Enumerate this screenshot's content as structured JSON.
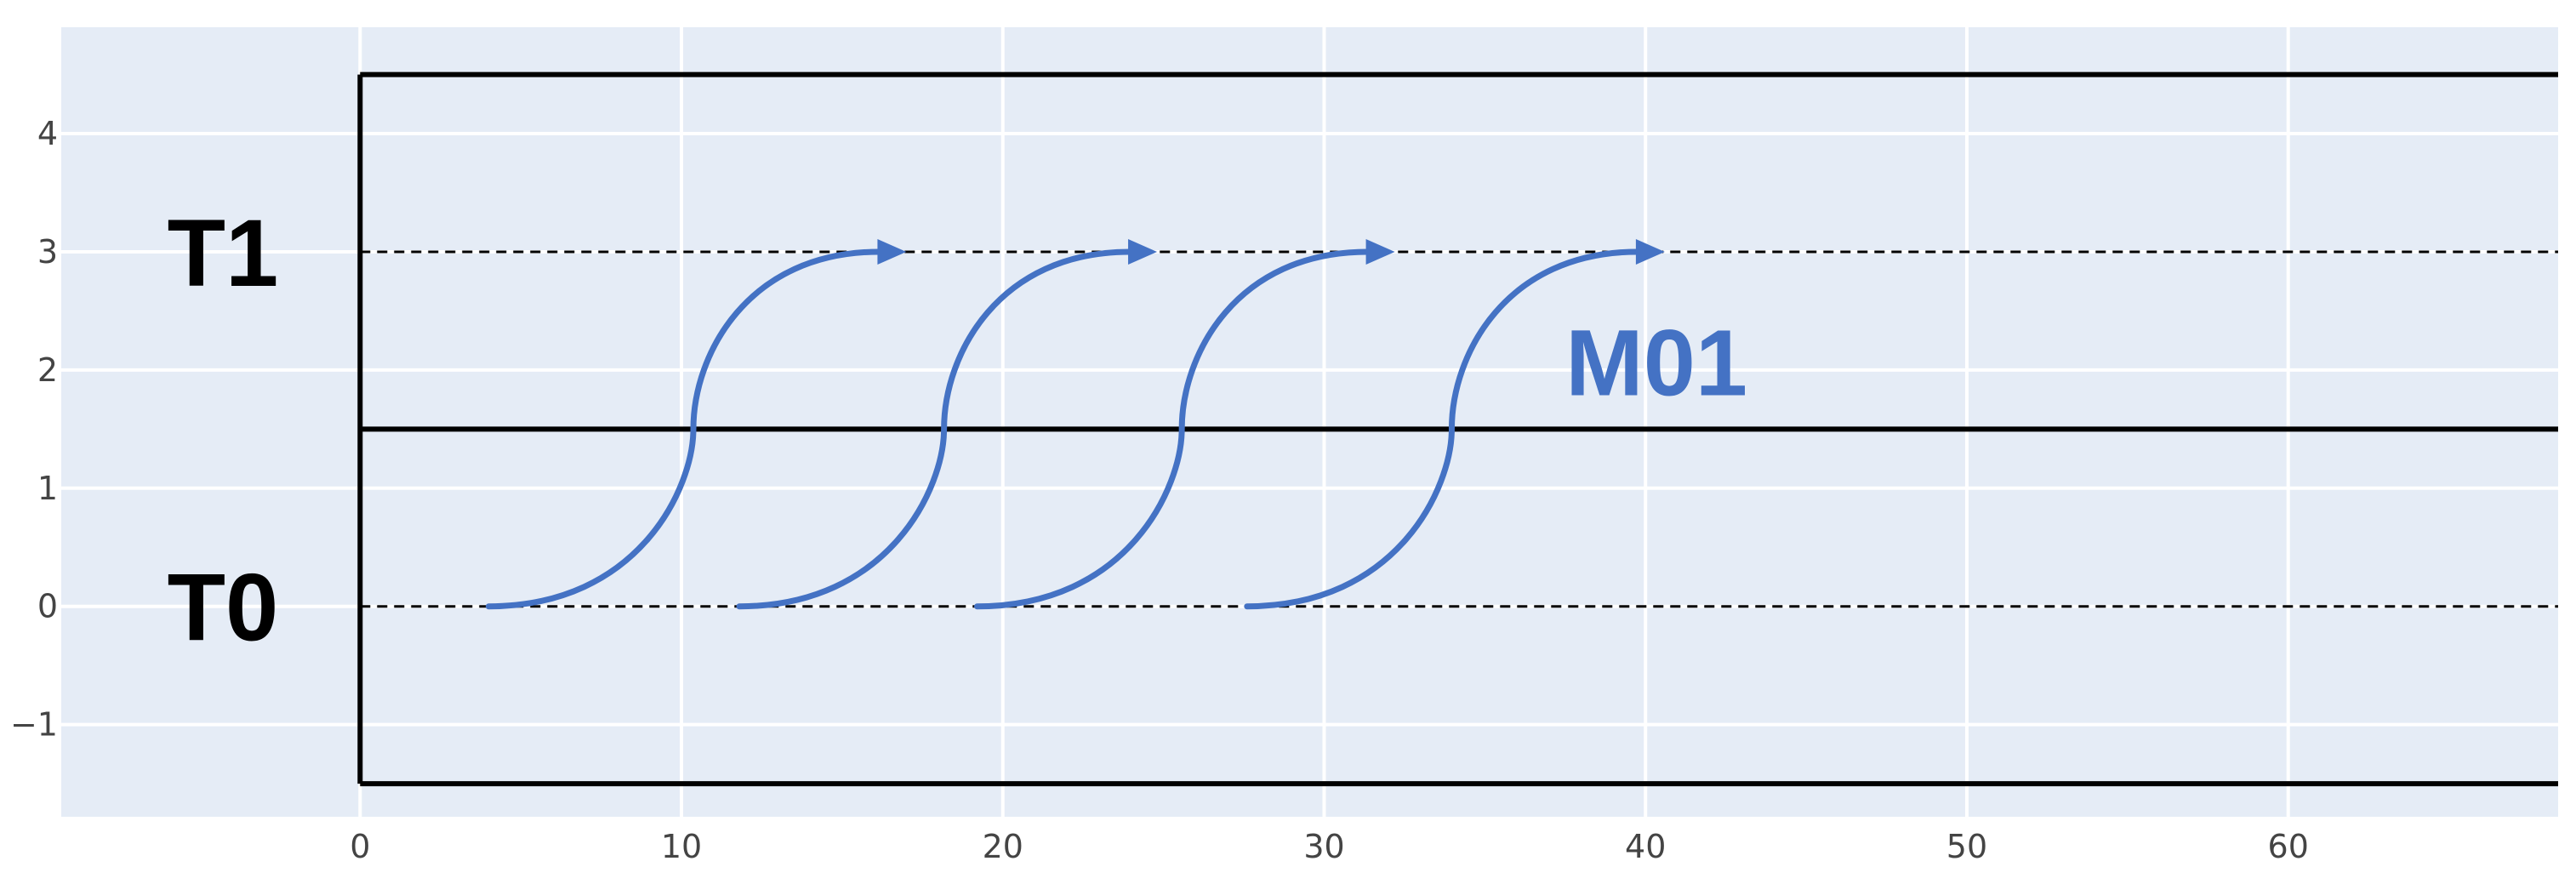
{
  "chart_data": {
    "type": "line",
    "x": {
      "range": [
        -9.3,
        68.4
      ],
      "ticks": [
        0,
        10,
        20,
        30,
        40,
        50,
        60
      ],
      "tick_labels": [
        "0",
        "10",
        "20",
        "30",
        "40",
        "50",
        "60"
      ]
    },
    "y": {
      "range": [
        -1.78,
        4.9
      ],
      "ticks": [
        -1,
        0,
        1,
        2,
        3,
        4
      ],
      "tick_labels": [
        "−1",
        "0",
        "1",
        "2",
        "3",
        "4"
      ]
    },
    "grid": true,
    "colors": {
      "plot_bg": "#e5ecf6",
      "grid": "#ffffff",
      "tick_text": "#444444",
      "line": "#000000",
      "arrow": "#4472c4"
    },
    "tracks": [
      {
        "label": "T1",
        "y": 3
      },
      {
        "label": "T0",
        "y": 0
      }
    ],
    "boundaries": [
      4.5,
      1.5,
      -1.5
    ],
    "messages": [
      {
        "label": "",
        "from": {
          "x": 4,
          "y": 0
        },
        "to": {
          "x": 17,
          "y": 3
        }
      },
      {
        "label": "",
        "from": {
          "x": 11.8,
          "y": 0
        },
        "to": {
          "x": 24.8,
          "y": 3
        }
      },
      {
        "label": "",
        "from": {
          "x": 19.2,
          "y": 0
        },
        "to": {
          "x": 32.2,
          "y": 3
        }
      },
      {
        "label": "M01",
        "from": {
          "x": 27.6,
          "y": 0
        },
        "to": {
          "x": 40.6,
          "y": 3
        }
      }
    ]
  }
}
